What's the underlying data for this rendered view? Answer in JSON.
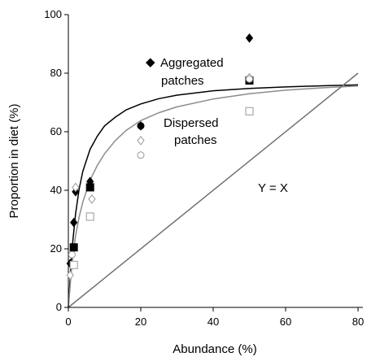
{
  "chart_data": {
    "type": "scatter",
    "xlabel": "Abundance (%)",
    "ylabel": "Proportion in diet (%)",
    "xlim": [
      0,
      80
    ],
    "ylim": [
      0,
      100
    ],
    "xticks": [
      0,
      20,
      40,
      60,
      80
    ],
    "yticks": [
      0,
      20,
      40,
      60,
      80,
      100
    ],
    "grid": false,
    "series": [
      {
        "name": "Aggregated patches",
        "marker": "filled-diamond",
        "color": "#000000",
        "points": [
          [
            0.5,
            15
          ],
          [
            1.5,
            29
          ],
          [
            2,
            39.5
          ],
          [
            6,
            43
          ],
          [
            20,
            62
          ],
          [
            50,
            92
          ]
        ]
      },
      {
        "marker": "filled-square",
        "color": "#000000",
        "points": [
          [
            1.5,
            20.5
          ],
          [
            6,
            41
          ],
          [
            50,
            77.5
          ]
        ]
      },
      {
        "marker": "filled-circle",
        "color": "#000000",
        "points": [
          [
            20,
            62
          ]
        ]
      },
      {
        "name": "Dispersed patches",
        "marker": "open-diamond",
        "color": "#999999",
        "points": [
          [
            0.5,
            11
          ],
          [
            2,
            41
          ],
          [
            6.5,
            37
          ],
          [
            20,
            57
          ],
          [
            50,
            78.5
          ]
        ]
      },
      {
        "marker": "open-square",
        "color": "#999999",
        "points": [
          [
            1.5,
            14.5
          ],
          [
            6,
            31
          ],
          [
            50,
            67
          ]
        ]
      },
      {
        "marker": "open-circle",
        "color": "#999999",
        "points": [
          [
            1,
            18
          ],
          [
            20,
            52
          ],
          [
            50,
            78
          ]
        ]
      }
    ],
    "curves": [
      {
        "name": "Aggregated patches",
        "color": "#000000",
        "points": [
          [
            0,
            0
          ],
          [
            1,
            20
          ],
          [
            2,
            32
          ],
          [
            3,
            40.5
          ],
          [
            4,
            46.5
          ],
          [
            6,
            54
          ],
          [
            8,
            58.5
          ],
          [
            10,
            62
          ],
          [
            13,
            65
          ],
          [
            16,
            67.5
          ],
          [
            20,
            69.5
          ],
          [
            25,
            71.3
          ],
          [
            30,
            72.5
          ],
          [
            40,
            74
          ],
          [
            50,
            74.8
          ],
          [
            60,
            75.3
          ],
          [
            70,
            75.7
          ],
          [
            80,
            76
          ]
        ]
      },
      {
        "name": "Dispersed patches",
        "color": "#8c8c8c",
        "points": [
          [
            0,
            0
          ],
          [
            1,
            15
          ],
          [
            2,
            24.5
          ],
          [
            3,
            31
          ],
          [
            4,
            36
          ],
          [
            6,
            43.5
          ],
          [
            8,
            48.5
          ],
          [
            10,
            52.5
          ],
          [
            13,
            57
          ],
          [
            16,
            60.5
          ],
          [
            20,
            63.8
          ],
          [
            25,
            66.5
          ],
          [
            30,
            68.5
          ],
          [
            40,
            71.2
          ],
          [
            50,
            73
          ],
          [
            60,
            74.2
          ],
          [
            70,
            75
          ],
          [
            80,
            75.6
          ]
        ]
      },
      {
        "name": "Y = X",
        "color": "#707070",
        "points": [
          [
            0,
            0
          ],
          [
            80,
            80
          ]
        ]
      }
    ],
    "annotations": {
      "aggregated": [
        "Aggregated",
        "patches"
      ],
      "dispersed": [
        "Dispersed",
        "patches"
      ],
      "yx": "Y = X"
    }
  }
}
